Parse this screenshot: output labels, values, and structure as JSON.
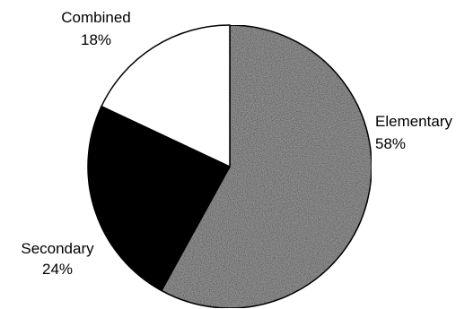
{
  "chart_data": {
    "type": "pie",
    "title": "",
    "categories": [
      "Elementary",
      "Secondary",
      "Combined"
    ],
    "values": [
      58,
      24,
      18
    ],
    "labels": [
      {
        "name": "Elementary",
        "value_text": "58%"
      },
      {
        "name": "Secondary",
        "value_text": "24%"
      },
      {
        "name": "Combined",
        "value_text": "18%"
      }
    ],
    "colors": [
      "#8f8f8f",
      "#000000",
      "#ffffff"
    ],
    "start": "12 o'clock, clockwise",
    "legend": "none"
  }
}
